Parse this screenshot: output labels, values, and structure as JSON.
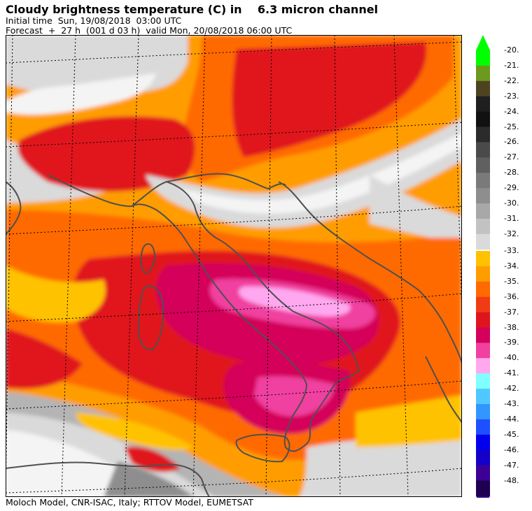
{
  "title": "Cloudy brightness temperature (C) in    6.3 micron channel",
  "initial_time": "Initial time  Sun, 19/08/2018  03:00 UTC",
  "forecast": "Forecast  +  27 h  (001 d 03 h)  valid Mon, 20/08/2018 06:00 UTC",
  "footer": "Moloch Model, CNR-ISAC, Italy; RTTOV Model, EUMETSAT",
  "colorbar": {
    "labels": [
      "-20.",
      "-21.",
      "-22.",
      "-23.",
      "-24.",
      "-25.",
      "-26.",
      "-27.",
      "-28.",
      "-29.",
      "-30.",
      "-31.",
      "-32.",
      "-33.",
      "-34.",
      "-35.",
      "-36.",
      "-37.",
      "-38.",
      "-39.",
      "-40.",
      "-41.",
      "-42.",
      "-43.",
      "-44.",
      "-45.",
      "-46.",
      "-47.",
      "-48."
    ],
    "colors": [
      "#00ff00",
      "#6b9a1e",
      "#4e4321",
      "#1f1f1f",
      "#111111",
      "#2b2b2b",
      "#4a4a4a",
      "#606060",
      "#7a7a7a",
      "#8e8e8e",
      "#a8a8a8",
      "#c2c2c2",
      "#dadada",
      "#ffc200",
      "#ff9d00",
      "#ff6a00",
      "#f03c14",
      "#e0141e",
      "#d4005a",
      "#f040a0",
      "#ffa8f0",
      "#80ffff",
      "#50c8ff",
      "#3296ff",
      "#1e50ff",
      "#0000ee",
      "#1400c8",
      "#3c0096",
      "#1e0050"
    ],
    "top_color": "#00ff00",
    "bottom_color": "#2a0078"
  },
  "map_colors": {
    "base": "#ff9d00",
    "pale": "#ffc200",
    "orange": "#ff6a00",
    "red": "#e0141e",
    "crimson": "#d4005a",
    "magenta": "#f040a0",
    "pink": "#ffa8f0",
    "light_gray": "#dadada",
    "gray": "#b4b4b4",
    "white": "#f4f4f4",
    "coast": "#505050",
    "grid": "#000000"
  }
}
